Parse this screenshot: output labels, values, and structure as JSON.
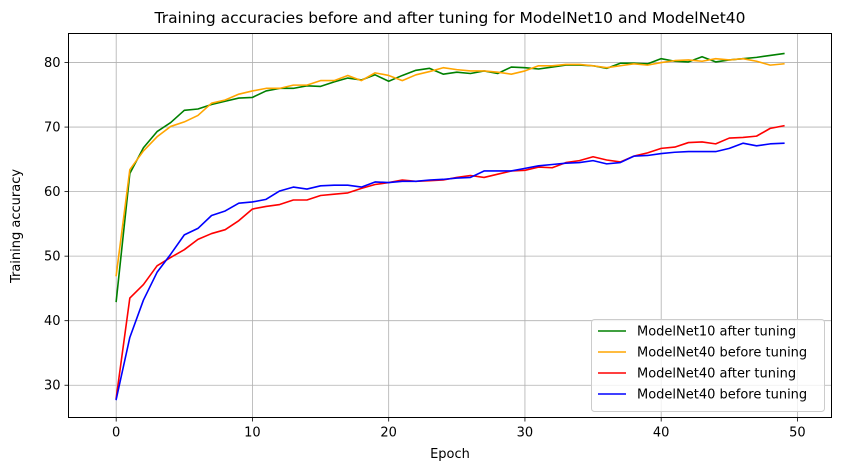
{
  "chart_data": {
    "type": "line",
    "title": "Training accuracies before and after tuning for ModelNet10 and ModelNet40",
    "xlabel": "Epoch",
    "ylabel": "Training accuracy",
    "xlim": [
      -3.5,
      52.5
    ],
    "ylim": [
      25,
      84.5
    ],
    "xticks": [
      0,
      10,
      20,
      30,
      40,
      50
    ],
    "yticks": [
      30,
      40,
      50,
      60,
      70,
      80
    ],
    "grid": true,
    "legend_position": "lower-right",
    "x": [
      0,
      1,
      2,
      3,
      4,
      5,
      6,
      7,
      8,
      9,
      10,
      11,
      12,
      13,
      14,
      15,
      16,
      17,
      18,
      19,
      20,
      21,
      22,
      23,
      24,
      25,
      26,
      27,
      28,
      29,
      30,
      31,
      32,
      33,
      34,
      35,
      36,
      37,
      38,
      39,
      40,
      41,
      42,
      43,
      44,
      45,
      46,
      47,
      48,
      49
    ],
    "series": [
      {
        "name": "ModelNet10 after tuning",
        "color": "#008000",
        "values": [
          43.0,
          62.8,
          66.8,
          69.3,
          70.7,
          72.6,
          72.8,
          73.5,
          74.0,
          74.5,
          74.6,
          75.6,
          76.0,
          76.0,
          76.4,
          76.3,
          77.0,
          77.6,
          77.3,
          78.1,
          77.1,
          78.0,
          78.8,
          79.1,
          78.2,
          78.5,
          78.3,
          78.7,
          78.3,
          79.3,
          79.2,
          79.0,
          79.3,
          79.6,
          79.6,
          79.5,
          79.1,
          79.9,
          79.9,
          79.8,
          80.6,
          80.2,
          80.1,
          80.9,
          80.1,
          80.4,
          80.6,
          80.8,
          81.1,
          81.4
        ]
      },
      {
        "name": "ModelNet40 before tuning",
        "color": "#ffa500",
        "values": [
          47.0,
          63.4,
          66.3,
          68.5,
          70.1,
          70.8,
          71.8,
          73.7,
          74.2,
          75.1,
          75.6,
          76.0,
          76.0,
          76.5,
          76.5,
          77.2,
          77.2,
          78.0,
          77.2,
          78.4,
          78.0,
          77.2,
          78.1,
          78.6,
          79.2,
          78.9,
          78.7,
          78.7,
          78.5,
          78.2,
          78.7,
          79.5,
          79.5,
          79.7,
          79.7,
          79.5,
          79.2,
          79.5,
          79.8,
          79.6,
          80.0,
          80.3,
          80.4,
          80.2,
          80.6,
          80.4,
          80.6,
          80.2,
          79.6,
          79.8
        ]
      },
      {
        "name": "ModelNet40 after tuning",
        "color": "#ff0000",
        "values": [
          28.0,
          43.5,
          45.6,
          48.5,
          49.8,
          51.0,
          52.6,
          53.5,
          54.1,
          55.5,
          57.3,
          57.7,
          58.0,
          58.7,
          58.7,
          59.4,
          59.6,
          59.8,
          60.5,
          61.1,
          61.4,
          61.8,
          61.6,
          61.7,
          61.8,
          62.2,
          62.5,
          62.2,
          62.7,
          63.2,
          63.3,
          63.8,
          63.7,
          64.5,
          64.8,
          65.4,
          64.9,
          64.6,
          65.5,
          66.0,
          66.7,
          66.9,
          67.6,
          67.7,
          67.4,
          68.3,
          68.4,
          68.6,
          69.8,
          70.2
        ]
      },
      {
        "name": "ModelNet40 before tuning",
        "color": "#0000ff",
        "values": [
          27.8,
          37.4,
          43.2,
          47.5,
          50.3,
          53.3,
          54.3,
          56.3,
          57.0,
          58.2,
          58.4,
          58.8,
          60.1,
          60.7,
          60.4,
          60.9,
          61.0,
          61.0,
          60.7,
          61.5,
          61.4,
          61.6,
          61.6,
          61.8,
          61.9,
          62.1,
          62.2,
          63.2,
          63.2,
          63.2,
          63.6,
          64.0,
          64.2,
          64.4,
          64.5,
          64.8,
          64.3,
          64.5,
          65.5,
          65.6,
          65.9,
          66.1,
          66.2,
          66.2,
          66.2,
          66.7,
          67.5,
          67.1,
          67.4,
          67.5
        ]
      }
    ]
  }
}
